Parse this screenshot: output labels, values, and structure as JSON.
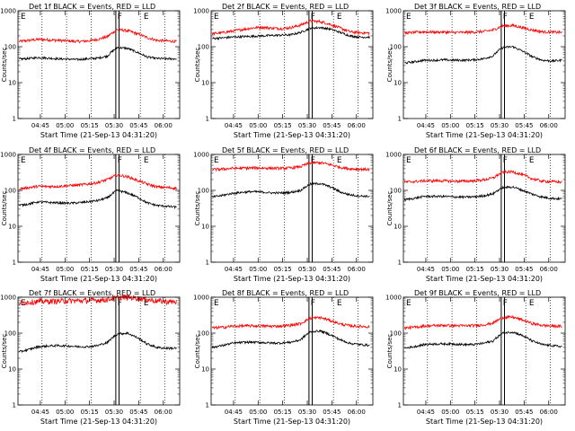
{
  "chart_data": {
    "type": "line",
    "y_scale": "log",
    "ylim": [
      1,
      1000
    ],
    "y_ticks": [
      1,
      10,
      100,
      1000
    ],
    "y_tick_labels": [
      "1",
      "10",
      "100",
      "1000"
    ],
    "xlim": [
      "04:31:20",
      "06:10:00"
    ],
    "x_ticks": [
      "04:45",
      "05:00",
      "05:15",
      "05:30",
      "05:45",
      "06:00"
    ],
    "x_tick_labels": [
      "04:45",
      "05:00",
      "05:15",
      "05:30",
      "05:45",
      "06:00"
    ],
    "ylabel": "Counts/sec",
    "xlabel": "Start Time (21-Sep-13 04:31:20)",
    "series_colors": {
      "events": "#000000",
      "lld": "#ff0000"
    },
    "marker_lines": [
      "04:46",
      "05:01",
      "05:16",
      "05:31",
      "05:33",
      "05:46",
      "06:01"
    ],
    "marker_solid": [
      "05:31",
      "05:33"
    ],
    "flag_labels": [
      {
        "text": "E",
        "x": "04:33"
      },
      {
        "text": "F",
        "x": "05:32"
      },
      {
        "text": "E",
        "x": "05:48"
      }
    ],
    "x_samples": [
      "04:32",
      "04:38",
      "04:44",
      "04:50",
      "04:56",
      "05:02",
      "05:08",
      "05:14",
      "05:20",
      "05:26",
      "05:32",
      "05:38",
      "05:44",
      "05:50",
      "05:56",
      "06:02",
      "06:08"
    ],
    "panels": [
      {
        "title": "Det 1f BLACK = Events, RED = LLD",
        "events": [
          45,
          47,
          50,
          48,
          46,
          45,
          44,
          46,
          48,
          55,
          95,
          90,
          70,
          52,
          47,
          46,
          46
        ],
        "lld": [
          140,
          150,
          160,
          155,
          150,
          145,
          140,
          145,
          160,
          190,
          300,
          280,
          230,
          180,
          150,
          145,
          140
        ]
      },
      {
        "title": "Det 2f BLACK = Events, RED = LLD",
        "events": [
          170,
          175,
          185,
          190,
          195,
          200,
          205,
          210,
          215,
          250,
          330,
          340,
          310,
          250,
          200,
          185,
          185
        ],
        "lld": [
          230,
          245,
          270,
          300,
          330,
          350,
          330,
          320,
          340,
          400,
          520,
          500,
          420,
          330,
          260,
          245,
          240
        ]
      },
      {
        "title": "Det 3f BLACK = Events, RED = LLD",
        "events": [
          35,
          38,
          42,
          42,
          43,
          42,
          42,
          43,
          46,
          55,
          95,
          100,
          75,
          52,
          42,
          40,
          42
        ],
        "lld": [
          240,
          250,
          260,
          255,
          255,
          250,
          250,
          255,
          265,
          290,
          380,
          390,
          340,
          290,
          260,
          255,
          250
        ]
      },
      {
        "title": "Det 4f BLACK = Events, RED = LLD",
        "events": [
          38,
          42,
          48,
          46,
          45,
          44,
          45,
          48,
          52,
          62,
          100,
          85,
          65,
          45,
          38,
          36,
          34
        ],
        "lld": [
          110,
          120,
          130,
          128,
          130,
          135,
          140,
          150,
          165,
          200,
          270,
          240,
          190,
          150,
          125,
          120,
          115
        ]
      },
      {
        "title": "Det 5f BLACK = Events, RED = LLD",
        "events": [
          65,
          72,
          82,
          88,
          92,
          90,
          85,
          85,
          88,
          100,
          150,
          155,
          125,
          90,
          75,
          70,
          68
        ],
        "lld": [
          380,
          390,
          410,
          415,
          420,
          420,
          415,
          410,
          420,
          460,
          580,
          590,
          520,
          440,
          400,
          390,
          385
        ]
      },
      {
        "title": "Det 6f BLACK = Events, RED = LLD",
        "events": [
          55,
          60,
          68,
          68,
          68,
          66,
          65,
          66,
          70,
          80,
          120,
          125,
          100,
          78,
          65,
          60,
          58
        ],
        "lld": [
          170,
          175,
          185,
          185,
          185,
          180,
          180,
          185,
          195,
          220,
          320,
          330,
          270,
          210,
          180,
          175,
          170
        ]
      },
      {
        "title": "Det 7f BLACK = Events, RED = LLD",
        "events": [
          30,
          35,
          42,
          44,
          45,
          44,
          42,
          42,
          45,
          55,
          95,
          100,
          75,
          50,
          40,
          38,
          38
        ],
        "lld": [
          700,
          730,
          760,
          770,
          780,
          790,
          800,
          810,
          830,
          860,
          980,
          1000,
          950,
          860,
          790,
          760,
          740
        ]
      },
      {
        "title": "Det 8f BLACK = Events, RED = LLD",
        "events": [
          40,
          45,
          52,
          55,
          56,
          55,
          53,
          53,
          56,
          65,
          110,
          115,
          90,
          65,
          52,
          48,
          46
        ],
        "lld": [
          140,
          145,
          155,
          158,
          160,
          158,
          155,
          158,
          165,
          185,
          260,
          270,
          225,
          180,
          160,
          155,
          150
        ]
      },
      {
        "title": "Det 9f BLACK = Events, RED = LLD",
        "events": [
          38,
          42,
          48,
          50,
          50,
          50,
          48,
          48,
          52,
          60,
          100,
          108,
          85,
          60,
          48,
          45,
          42
        ],
        "lld": [
          140,
          145,
          158,
          162,
          165,
          162,
          160,
          162,
          170,
          190,
          270,
          280,
          230,
          185,
          165,
          158,
          155
        ]
      }
    ]
  }
}
